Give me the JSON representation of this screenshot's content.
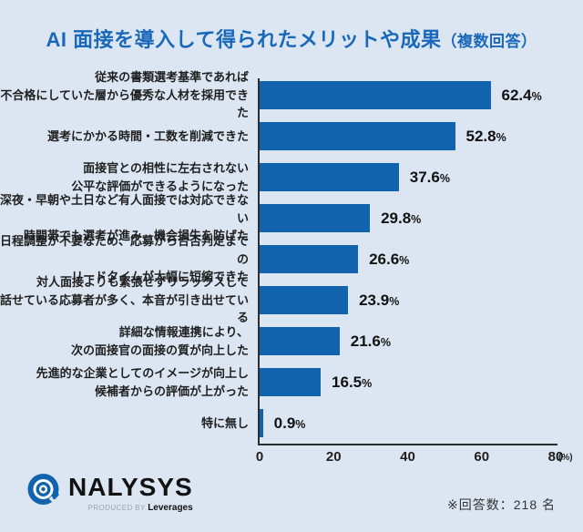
{
  "title": {
    "main": "AI 面接を導入して得られたメリットや成果",
    "note": "（複数回答）"
  },
  "chart_data": {
    "type": "bar",
    "orientation": "horizontal",
    "title": "AI 面接を導入して得られたメリットや成果（複数回答）",
    "categories": [
      "従来の書類選考基準であれば\n不合格にしていた層から優秀な人材を採用できた",
      "選考にかかる時間・工数を削減できた",
      "面接官との相性に左右されない\n公平な評価ができるようになった",
      "深夜・早朝や土日など有人面接では対応できない\n時間帯でも選考が進み、機会損失を防げた",
      "日程調整が不要なため、応募から合否判定までの\nリードタイムが大幅に短縮できた",
      "対人面接よりも緊張せずリラックスして\n話せている応募者が多く、本音が引き出せている",
      "詳細な情報連携により、\n次の面接官の面接の質が向上した",
      "先進的な企業としてのイメージが向上し\n候補者からの評価が上がった",
      "特に無し"
    ],
    "values": [
      62.4,
      52.8,
      37.6,
      29.8,
      26.6,
      23.9,
      21.6,
      16.5,
      0.9
    ],
    "values_display": [
      "62.4",
      "52.8",
      "37.6",
      "29.8",
      "26.6",
      "23.9",
      "21.6",
      "16.5",
      "0.9"
    ],
    "unit": "%",
    "xlabel": "",
    "ylabel": "",
    "xlim": [
      0,
      80
    ],
    "xticks": [
      0,
      20,
      40,
      60,
      80
    ],
    "xtick_unit": "(%)",
    "grid": false,
    "legend": "none",
    "bar_color": "#1263ae"
  },
  "footer": {
    "logo_text": "NALYSYS",
    "produced_by": "PRODUCED BY",
    "producer": "Leverages",
    "note": "※回答数：218 名"
  },
  "colors": {
    "background": "#dce6f2",
    "bar": "#1263ae",
    "title": "#1a68ba",
    "text": "#1f1f1f",
    "axis": "#2e2e2e"
  }
}
